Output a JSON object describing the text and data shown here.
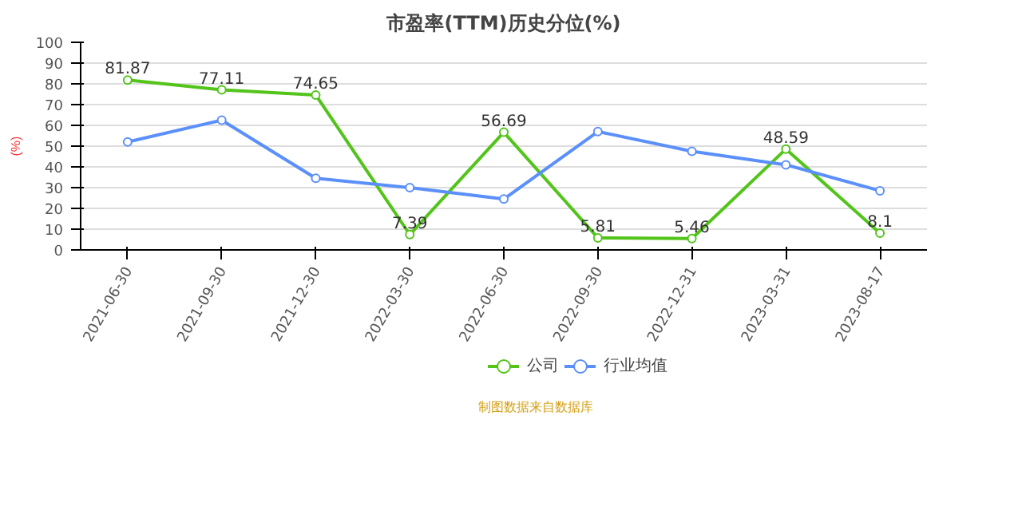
{
  "chart_data": {
    "type": "line",
    "title": "市盈率(TTM)历史分位(%)",
    "ylabel": "(%)",
    "categories": [
      "2021-06-30",
      "2021-09-30",
      "2021-12-30",
      "2022-03-30",
      "2022-06-30",
      "2022-09-30",
      "2022-12-31",
      "2023-03-31",
      "2023-08-17"
    ],
    "series": [
      {
        "name": "公司",
        "color": "#52c41a",
        "values": [
          81.87,
          77.11,
          74.65,
          7.39,
          56.69,
          5.81,
          5.46,
          48.59,
          8.1
        ],
        "value_labels": [
          "81.87",
          "77.11",
          "74.65",
          "7.39",
          "56.69",
          "5.81",
          "5.46",
          "48.59",
          "8.1"
        ]
      },
      {
        "name": "行业均值",
        "color": "#5b8ff9",
        "values": [
          52,
          62.5,
          34.5,
          30,
          24.5,
          57,
          47.5,
          41,
          28.5
        ]
      }
    ],
    "ylim": [
      0,
      100
    ],
    "yticks": [
      0,
      10,
      20,
      30,
      40,
      50,
      60,
      70,
      80,
      90,
      100
    ],
    "grid": "y",
    "legend": "bottom",
    "marker": "circle",
    "line_style": "solid",
    "annotations": [
      "制图数据来自数据库"
    ]
  }
}
